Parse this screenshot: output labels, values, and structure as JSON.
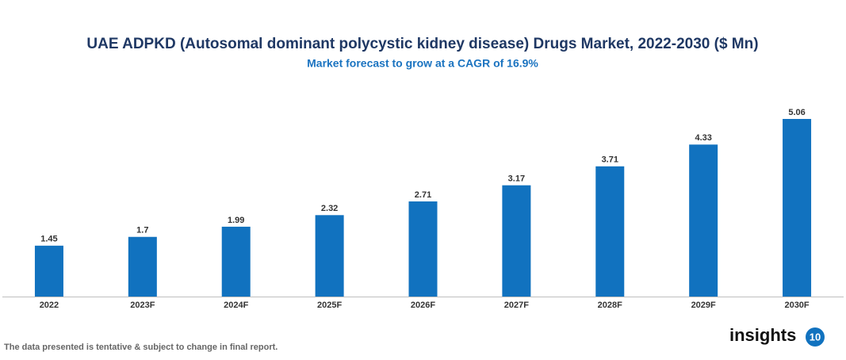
{
  "chart_data": {
    "type": "bar",
    "title": "UAE ADPKD (Autosomal dominant polycystic kidney disease) Drugs Market, 2022-2030 ($ Mn)",
    "subtitle": "Market forecast to grow at a CAGR of 16.9%",
    "categories": [
      "2022",
      "2023F",
      "2024F",
      "2025F",
      "2026F",
      "2027F",
      "2028F",
      "2029F",
      "2030F"
    ],
    "values": [
      1.45,
      1.7,
      1.99,
      2.32,
      2.71,
      3.17,
      3.71,
      4.33,
      5.06
    ],
    "color": "#1172bf"
  },
  "footer": {
    "note": "The data presented is tentative & subject to change in final report.",
    "logo_text": "insights",
    "logo_number": "10"
  }
}
